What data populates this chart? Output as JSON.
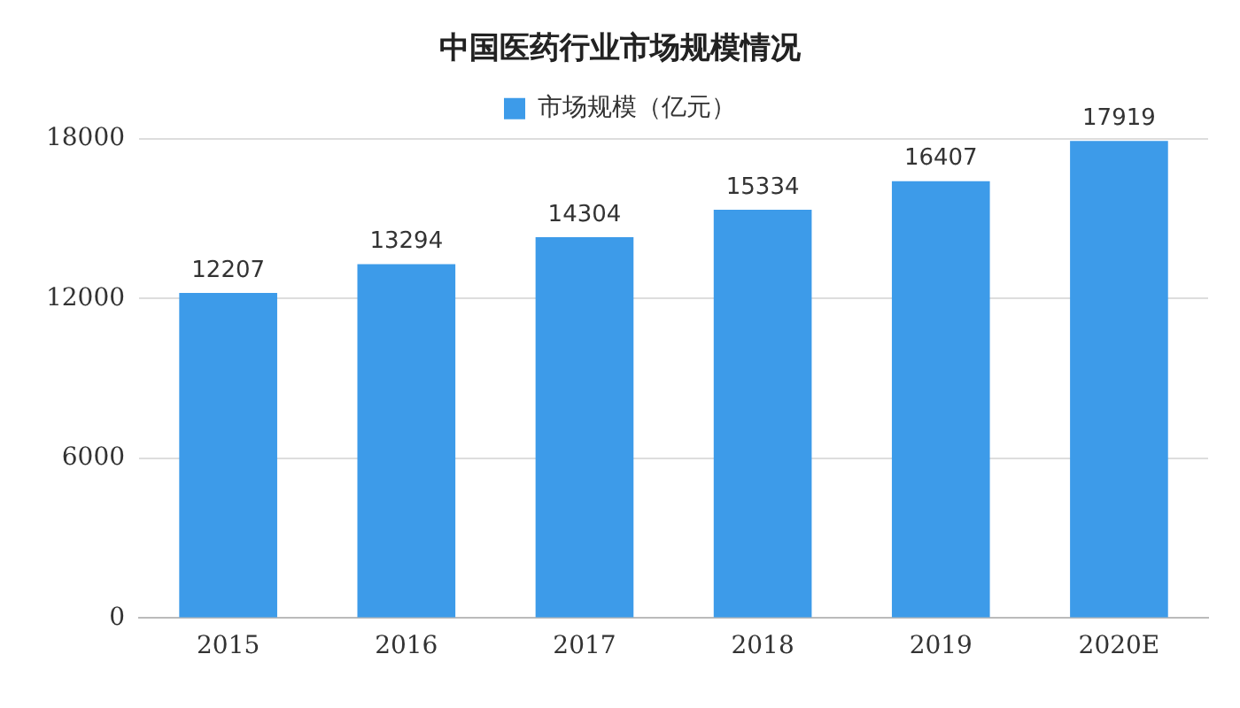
{
  "chart_data": {
    "type": "bar",
    "title": "中国医药行业市场规模情况",
    "categories": [
      "2015",
      "2016",
      "2017",
      "2018",
      "2019",
      "2020E"
    ],
    "series": [
      {
        "name": "市场规模（亿元）",
        "color": "#3d9be9",
        "values": [
          12207,
          13294,
          14304,
          15334,
          16407,
          17919
        ]
      }
    ],
    "ylim": [
      0,
      18000
    ],
    "yticks": [
      0,
      6000,
      12000,
      18000
    ],
    "grid": "y",
    "legend": "top",
    "data_labels": true
  }
}
